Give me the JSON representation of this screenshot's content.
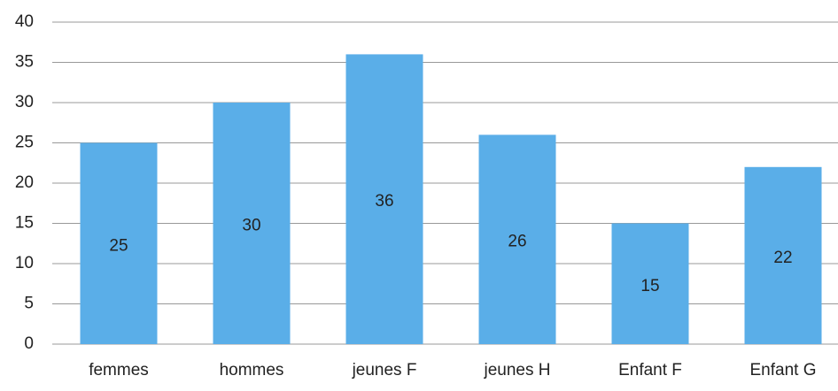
{
  "chart_data": {
    "type": "bar",
    "categories": [
      "femmes",
      "hommes",
      "jeunes F",
      "jeunes H",
      "Enfant F",
      "Enfant G"
    ],
    "values": [
      25,
      30,
      36,
      26,
      15,
      22
    ],
    "color": "#5aaee8",
    "ylim": [
      0,
      40
    ],
    "yticks": [
      0,
      5,
      10,
      15,
      20,
      25,
      30,
      35,
      40
    ],
    "grid": true
  }
}
